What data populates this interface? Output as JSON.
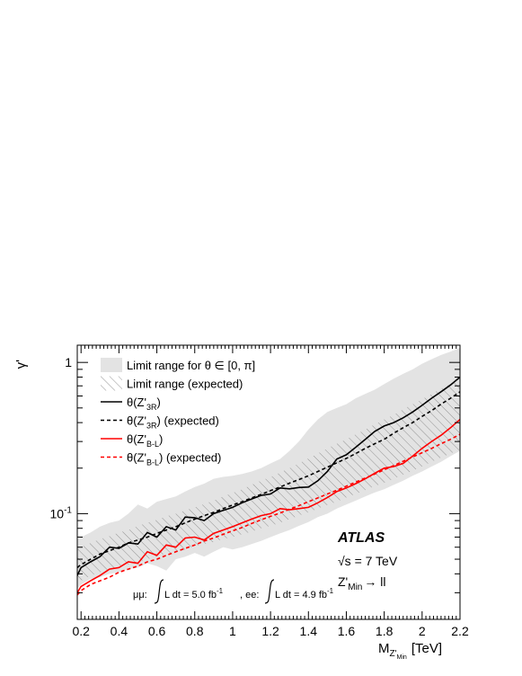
{
  "chart_data": {
    "type": "line",
    "ylabel": "γ'",
    "xlabel": "M",
    "xlabel_sub": "Z'",
    "xlabel_subsub": "Min",
    "xlabel_unit": "[TeV]",
    "xlim": [
      0.18,
      2.2
    ],
    "ylim": [
      0.02,
      1.3
    ],
    "yscale": "log",
    "x_ticks": [
      0.2,
      0.4,
      0.6,
      0.8,
      1,
      1.2,
      1.4,
      1.6,
      1.8,
      2,
      2.2
    ],
    "x_tick_labels": [
      "0.2",
      "0.4",
      "0.6",
      "0.8",
      "1",
      "1.2",
      "1.4",
      "1.6",
      "1.8",
      "2",
      "2.2"
    ],
    "y_tick_labels": [
      {
        "value": 1,
        "base": "1",
        "exp": ""
      },
      {
        "value": 0.1,
        "base": "10",
        "exp": "-1"
      }
    ],
    "grid": false,
    "legend_position": "top-left",
    "legend": [
      {
        "kind": "band",
        "label": "Limit range for θ ∈ [0, π]"
      },
      {
        "kind": "hatch",
        "label": "Limit range (expected)"
      },
      {
        "kind": "line",
        "color": "#000000",
        "dashed": false,
        "pre": "θ(Z'",
        "sub": "3R",
        "post": ")"
      },
      {
        "kind": "line",
        "color": "#000000",
        "dashed": true,
        "pre": "θ(Z'",
        "sub": "3R",
        "post": ") (expected)"
      },
      {
        "kind": "line",
        "color": "#ff0000",
        "dashed": false,
        "pre": "θ(Z'",
        "sub": "B-L",
        "post": ")"
      },
      {
        "kind": "line",
        "color": "#ff0000",
        "dashed": true,
        "pre": "θ(Z'",
        "sub": "B-L",
        "post": ") (expected)"
      }
    ],
    "annotations": {
      "experiment": "ATLAS",
      "energy": "√s = 7 TeV",
      "process_pre": "Z'",
      "process_sub": "Min",
      "process_post": "→ ll",
      "lumi_mumu": "μμ:",
      "lumi_mumu_text": "L dt = 5.0 fb",
      "lumi_ee": ", ee:",
      "lumi_ee_text": "L dt = 4.9 fb",
      "lumi_exp": "-1"
    },
    "x": [
      0.18,
      0.2,
      0.25,
      0.3,
      0.35,
      0.4,
      0.45,
      0.5,
      0.55,
      0.6,
      0.65,
      0.7,
      0.75,
      0.8,
      0.85,
      0.9,
      0.95,
      1.0,
      1.05,
      1.1,
      1.15,
      1.2,
      1.25,
      1.3,
      1.35,
      1.4,
      1.45,
      1.5,
      1.55,
      1.6,
      1.65,
      1.7,
      1.75,
      1.8,
      1.85,
      1.9,
      1.95,
      2.0,
      2.05,
      2.1,
      2.15,
      2.2
    ],
    "band_observed": {
      "lower": [
        0.032,
        0.034,
        0.037,
        0.038,
        0.04,
        0.041,
        0.043,
        0.044,
        0.047,
        0.045,
        0.042,
        0.05,
        0.052,
        0.055,
        0.052,
        0.056,
        0.06,
        0.058,
        0.06,
        0.063,
        0.066,
        0.07,
        0.074,
        0.078,
        0.083,
        0.088,
        0.095,
        0.1,
        0.108,
        0.115,
        0.122,
        0.13,
        0.138,
        0.145,
        0.155,
        0.165,
        0.178,
        0.19,
        0.205,
        0.22,
        0.24,
        0.26
      ],
      "upper": [
        0.068,
        0.07,
        0.075,
        0.082,
        0.087,
        0.09,
        0.1,
        0.115,
        0.108,
        0.12,
        0.125,
        0.13,
        0.14,
        0.15,
        0.158,
        0.17,
        0.175,
        0.178,
        0.183,
        0.19,
        0.2,
        0.215,
        0.23,
        0.26,
        0.3,
        0.36,
        0.42,
        0.47,
        0.5,
        0.53,
        0.58,
        0.62,
        0.66,
        0.72,
        0.78,
        0.84,
        0.9,
        0.98,
        1.05,
        1.12,
        1.18,
        1.25
      ]
    },
    "band_expected": {
      "lower": [
        0.035,
        0.036,
        0.039,
        0.041,
        0.043,
        0.045,
        0.046,
        0.048,
        0.05,
        0.052,
        0.054,
        0.056,
        0.058,
        0.061,
        0.063,
        0.065,
        0.068,
        0.07,
        0.073,
        0.076,
        0.08,
        0.083,
        0.087,
        0.092,
        0.097,
        0.102,
        0.108,
        0.114,
        0.12,
        0.128,
        0.135,
        0.143,
        0.152,
        0.16,
        0.17,
        0.181,
        0.192,
        0.205,
        0.22,
        0.235,
        0.25,
        0.265
      ],
      "upper": [
        0.058,
        0.06,
        0.064,
        0.068,
        0.071,
        0.075,
        0.078,
        0.083,
        0.087,
        0.091,
        0.096,
        0.1,
        0.105,
        0.11,
        0.116,
        0.122,
        0.13,
        0.137,
        0.145,
        0.155,
        0.165,
        0.175,
        0.187,
        0.2,
        0.215,
        0.232,
        0.25,
        0.27,
        0.29,
        0.31,
        0.335,
        0.36,
        0.39,
        0.42,
        0.45,
        0.49,
        0.53,
        0.57,
        0.62,
        0.67,
        0.72,
        0.78
      ]
    },
    "series": [
      {
        "name": "θ(Z'3R)",
        "color": "#000000",
        "dashed": false,
        "values": [
          0.039,
          0.044,
          0.048,
          0.052,
          0.06,
          0.059,
          0.064,
          0.063,
          0.075,
          0.07,
          0.082,
          0.078,
          0.095,
          0.094,
          0.09,
          0.1,
          0.105,
          0.11,
          0.118,
          0.125,
          0.132,
          0.135,
          0.148,
          0.146,
          0.149,
          0.15,
          0.165,
          0.19,
          0.23,
          0.245,
          0.275,
          0.31,
          0.35,
          0.38,
          0.4,
          0.43,
          0.47,
          0.52,
          0.58,
          0.64,
          0.71,
          0.8
        ]
      },
      {
        "name": "θ(Z'3R) (expected)",
        "color": "#000000",
        "dashed": true,
        "values": [
          0.044,
          0.046,
          0.05,
          0.054,
          0.057,
          0.06,
          0.064,
          0.067,
          0.07,
          0.074,
          0.078,
          0.082,
          0.087,
          0.092,
          0.097,
          0.102,
          0.108,
          0.114,
          0.12,
          0.127,
          0.134,
          0.142,
          0.15,
          0.159,
          0.168,
          0.178,
          0.19,
          0.203,
          0.217,
          0.232,
          0.25,
          0.27,
          0.29,
          0.31,
          0.34,
          0.37,
          0.4,
          0.44,
          0.48,
          0.53,
          0.58,
          0.64
        ]
      },
      {
        "name": "θ(Z'B-L)",
        "color": "#ff0000",
        "dashed": false,
        "values": [
          0.03,
          0.033,
          0.036,
          0.039,
          0.043,
          0.044,
          0.048,
          0.047,
          0.056,
          0.053,
          0.062,
          0.06,
          0.069,
          0.07,
          0.067,
          0.074,
          0.078,
          0.082,
          0.087,
          0.092,
          0.097,
          0.1,
          0.108,
          0.106,
          0.108,
          0.11,
          0.118,
          0.128,
          0.14,
          0.148,
          0.158,
          0.17,
          0.185,
          0.2,
          0.205,
          0.215,
          0.24,
          0.27,
          0.3,
          0.33,
          0.37,
          0.42
        ]
      },
      {
        "name": "θ(Z'B-L) (expected)",
        "color": "#ff0000",
        "dashed": true,
        "values": [
          0.029,
          0.031,
          0.034,
          0.036,
          0.038,
          0.041,
          0.043,
          0.045,
          0.048,
          0.05,
          0.053,
          0.056,
          0.059,
          0.062,
          0.066,
          0.069,
          0.073,
          0.077,
          0.081,
          0.086,
          0.091,
          0.096,
          0.101,
          0.107,
          0.113,
          0.12,
          0.127,
          0.135,
          0.143,
          0.152,
          0.162,
          0.172,
          0.183,
          0.195,
          0.208,
          0.222,
          0.237,
          0.253,
          0.27,
          0.29,
          0.31,
          0.335
        ]
      }
    ]
  }
}
